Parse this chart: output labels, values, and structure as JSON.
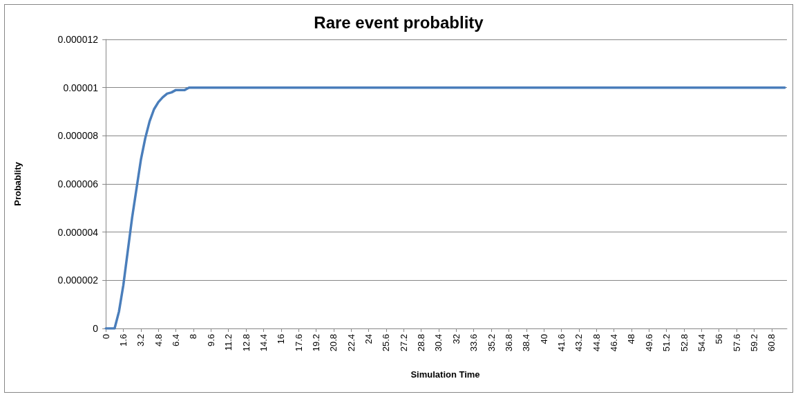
{
  "chart_data": {
    "type": "line",
    "title": "Rare event probablity",
    "xlabel": "Simulation Time",
    "ylabel": "Probablity",
    "x": [
      0,
      0.4,
      0.8,
      1.2,
      1.6,
      2.0,
      2.4,
      2.8,
      3.2,
      3.6,
      4.0,
      4.4,
      4.8,
      5.2,
      5.6,
      6.0,
      6.4,
      6.8,
      7.2,
      7.6,
      8.4,
      9.6,
      12,
      16,
      20,
      24,
      28,
      32,
      36,
      40,
      44,
      48,
      52,
      56,
      60,
      62
    ],
    "series": [
      {
        "color": "#4a7ebb",
        "values": [
          0,
          0,
          0,
          7e-07,
          1.8e-06,
          3.2e-06,
          4.6e-06,
          5.8e-06,
          7e-06,
          7.9e-06,
          8.6e-06,
          9.1e-06,
          9.4e-06,
          9.6e-06,
          9.75e-06,
          9.8e-06,
          9.9e-06,
          9.9e-06,
          9.9e-06,
          1e-05,
          1e-05,
          1e-05,
          1e-05,
          1e-05,
          1e-05,
          1e-05,
          1e-05,
          1e-05,
          1e-05,
          1e-05,
          1e-05,
          1e-05,
          1e-05,
          1e-05,
          1e-05,
          1e-05
        ]
      }
    ],
    "xlim": [
      -0.2,
      62.2
    ],
    "xticks": [
      0,
      1.6,
      3.2,
      4.8,
      6.4,
      8,
      9.6,
      11.2,
      12.8,
      14.4,
      16,
      17.6,
      19.2,
      20.8,
      22.4,
      24,
      25.6,
      27.2,
      28.8,
      30.4,
      32,
      33.6,
      35.2,
      36.8,
      38.4,
      40,
      41.6,
      43.2,
      44.8,
      46.4,
      48,
      49.6,
      51.2,
      52.8,
      54.4,
      56,
      57.6,
      59.2,
      60.8
    ],
    "ylim": [
      0,
      1.2e-05
    ],
    "yticks": [
      0,
      {
        "value": 2e-06,
        "label": "0.000002"
      },
      {
        "value": 4e-06,
        "label": "0.000004"
      },
      {
        "value": 6e-06,
        "label": "0.000006"
      },
      {
        "value": 8e-06,
        "label": "0.000008"
      },
      {
        "value": 1e-05,
        "label": "0.00001"
      },
      {
        "value": 1.2e-05,
        "label": "0.000012"
      }
    ],
    "grid": "y",
    "marker": "none",
    "line_style": "solid"
  }
}
